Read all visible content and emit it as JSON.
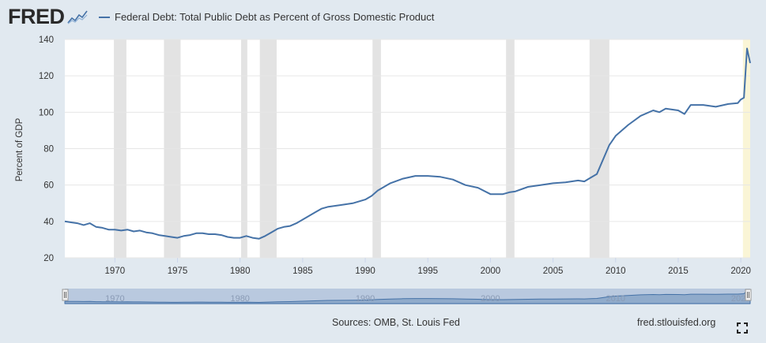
{
  "header": {
    "logo": "FRED",
    "logo_icon": "fred-chart-logo-icon"
  },
  "legend": {
    "label": "Federal Debt: Total Public Debt as Percent of Gross Domestic Product",
    "color": "#4572a7"
  },
  "footer": {
    "source": "Sources: OMB, St. Louis Fed",
    "site": "fred.stlouisfed.org",
    "fullscreen_icon": "fullscreen-icon"
  },
  "navigator": {
    "ticks": [
      "1970",
      "1980",
      "1990",
      "2000",
      "2010",
      "2020"
    ]
  },
  "colors": {
    "line": "#4572a7",
    "recession": "#e3e3e3",
    "highlight": "#faf5d6",
    "background": "#e1e9f0",
    "plot_bg": "#ffffff"
  },
  "chart_data": {
    "type": "line",
    "title": "Federal Debt: Total Public Debt as Percent of Gross Domestic Product",
    "xlabel": "",
    "ylabel": "Percent of GDP",
    "xlim": [
      1966.0,
      2020.75
    ],
    "ylim": [
      20,
      140
    ],
    "yticks": [
      20,
      40,
      60,
      80,
      100,
      120,
      140
    ],
    "xticks": [
      1970,
      1975,
      1980,
      1985,
      1990,
      1995,
      2000,
      2005,
      2010,
      2015,
      2020
    ],
    "grid": true,
    "legend_position": "top-left",
    "recessions": [
      [
        1969.92,
        1970.92
      ],
      [
        1973.92,
        1975.25
      ],
      [
        1980.08,
        1980.58
      ],
      [
        1981.58,
        1982.92
      ],
      [
        1990.58,
        1991.25
      ],
      [
        2001.25,
        2001.92
      ],
      [
        2007.92,
        2009.5
      ]
    ],
    "highlight": [
      2020.17,
      2020.75
    ],
    "series": [
      {
        "name": "Federal Debt: Total Public Debt as Percent of Gross Domestic Product",
        "x": [
          1966.0,
          1966.5,
          1967.0,
          1967.5,
          1968.0,
          1968.5,
          1969.0,
          1969.5,
          1970.0,
          1970.5,
          1971.0,
          1971.5,
          1972.0,
          1972.5,
          1973.0,
          1973.5,
          1974.0,
          1974.5,
          1975.0,
          1975.5,
          1976.0,
          1976.5,
          1977.0,
          1977.5,
          1978.0,
          1978.5,
          1979.0,
          1979.5,
          1980.0,
          1980.5,
          1981.0,
          1981.5,
          1982.0,
          1982.5,
          1983.0,
          1983.5,
          1984.0,
          1984.5,
          1985.0,
          1985.5,
          1986.0,
          1986.5,
          1987.0,
          1988.0,
          1989.0,
          1990.0,
          1990.5,
          1991.0,
          1991.5,
          1992.0,
          1993.0,
          1994.0,
          1995.0,
          1996.0,
          1997.0,
          1998.0,
          1999.0,
          2000.0,
          2001.0,
          2001.5,
          2002.0,
          2003.0,
          2004.0,
          2005.0,
          2006.0,
          2007.0,
          2007.5,
          2008.0,
          2008.5,
          2009.0,
          2009.5,
          2010.0,
          2011.0,
          2012.0,
          2013.0,
          2013.5,
          2014.0,
          2015.0,
          2015.5,
          2016.0,
          2017.0,
          2018.0,
          2019.0,
          2019.75,
          2020.0,
          2020.25,
          2020.5,
          2020.75
        ],
        "values": [
          40.0,
          39.5,
          39.0,
          38.0,
          39.0,
          37.0,
          36.5,
          35.5,
          35.5,
          35.0,
          35.5,
          34.5,
          35.0,
          34.0,
          33.5,
          32.5,
          32.0,
          31.5,
          31.0,
          32.0,
          32.5,
          33.5,
          33.5,
          33.0,
          33.0,
          32.5,
          31.5,
          31.0,
          31.0,
          32.0,
          31.0,
          30.5,
          32.0,
          34.0,
          36.0,
          37.0,
          37.5,
          39.0,
          41.0,
          43.0,
          45.0,
          47.0,
          48.0,
          49.0,
          50.0,
          52.0,
          54.0,
          57.0,
          59.0,
          61.0,
          63.5,
          65.0,
          65.0,
          64.5,
          63.0,
          60.0,
          58.5,
          55.0,
          55.0,
          56.0,
          56.5,
          59.0,
          60.0,
          61.0,
          61.5,
          62.5,
          62.0,
          64.0,
          66.0,
          74.0,
          82.0,
          87.0,
          93.0,
          98.0,
          101.0,
          100.0,
          102.0,
          101.0,
          99.0,
          104.0,
          104.0,
          103.0,
          104.5,
          105.0,
          107.0,
          108.0,
          135.0,
          127.0
        ]
      }
    ]
  }
}
